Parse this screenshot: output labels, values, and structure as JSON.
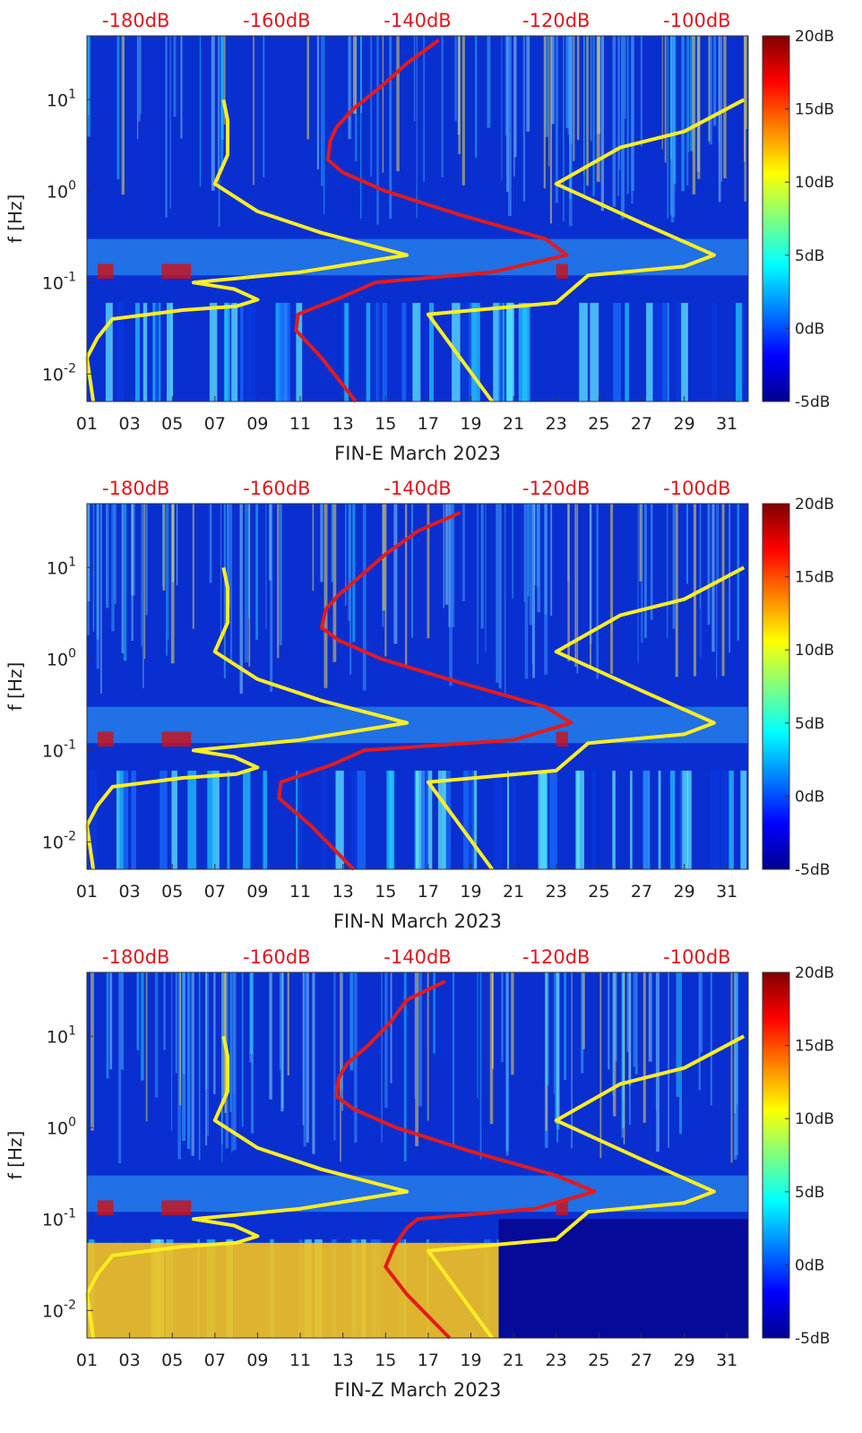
{
  "chart_data": [
    {
      "type": "heatmap",
      "title": "",
      "xlabel": "FIN-E March 2023",
      "ylabel": "f [Hz]",
      "x_ticks": [
        "01",
        "03",
        "05",
        "07",
        "09",
        "11",
        "13",
        "15",
        "17",
        "19",
        "21",
        "23",
        "25",
        "27",
        "29",
        "31"
      ],
      "x_range_days": [
        1,
        32
      ],
      "y_range_hz": [
        0.005,
        50
      ],
      "y_tick_labels": [
        "10^-2",
        "10^-1",
        "10^0",
        "10^1"
      ],
      "y_tick_values": [
        0.01,
        0.1,
        1,
        10
      ],
      "top_db_labels": [
        "-180dB",
        "-160dB",
        "-140dB",
        "-120dB",
        "-100dB"
      ],
      "colorbar": {
        "range_db": [
          -5,
          20
        ],
        "labels": [
          "20dB",
          "15dB",
          "10dB",
          "5dB",
          "0dB",
          "-5dB"
        ]
      },
      "series": [
        {
          "name": "Low noise model (yellow, left)",
          "color": "#ffee22",
          "points_day_hz": [
            [
              1.3,
              0.005
            ],
            [
              1.0,
              0.015
            ],
            [
              1.5,
              0.025
            ],
            [
              2.2,
              0.04
            ],
            [
              5.5,
              0.05
            ],
            [
              8.0,
              0.055
            ],
            [
              9.0,
              0.065
            ],
            [
              7.9,
              0.085
            ],
            [
              6.0,
              0.1
            ],
            [
              11.0,
              0.13
            ],
            [
              16.0,
              0.2
            ],
            [
              12.0,
              0.35
            ],
            [
              9.0,
              0.6
            ],
            [
              7.0,
              1.2
            ],
            [
              7.6,
              2.5
            ],
            [
              7.6,
              6
            ],
            [
              7.4,
              10
            ]
          ]
        },
        {
          "name": "High noise model (yellow, right)",
          "color": "#ffee22",
          "points_day_hz": [
            [
              20.0,
              0.005
            ],
            [
              17.0,
              0.045
            ],
            [
              23.0,
              0.06
            ],
            [
              24.5,
              0.12
            ],
            [
              29.0,
              0.15
            ],
            [
              30.4,
              0.2
            ],
            [
              27.0,
              0.45
            ],
            [
              23.0,
              1.2
            ],
            [
              26.0,
              3.0
            ],
            [
              29.0,
              4.5
            ],
            [
              31.8,
              10
            ]
          ]
        },
        {
          "name": "Measured noise level (red)",
          "color": "#e41a1c",
          "points_day_hz": [
            [
              13.6,
              0.005
            ],
            [
              12.0,
              0.015
            ],
            [
              10.8,
              0.03
            ],
            [
              10.9,
              0.045
            ],
            [
              13.0,
              0.07
            ],
            [
              14.5,
              0.1
            ],
            [
              20.0,
              0.13
            ],
            [
              23.5,
              0.2
            ],
            [
              22.5,
              0.3
            ],
            [
              18.5,
              0.55
            ],
            [
              15.0,
              1.0
            ],
            [
              13.0,
              1.6
            ],
            [
              12.3,
              2.2
            ],
            [
              12.4,
              3.5
            ],
            [
              12.7,
              5
            ],
            [
              13.5,
              8
            ],
            [
              14.8,
              14
            ],
            [
              16.0,
              25
            ],
            [
              17.5,
              45
            ]
          ]
        }
      ]
    },
    {
      "type": "heatmap",
      "title": "",
      "xlabel": "FIN-N March 2023",
      "ylabel": "f [Hz]",
      "x_ticks": [
        "01",
        "03",
        "05",
        "07",
        "09",
        "11",
        "13",
        "15",
        "17",
        "19",
        "21",
        "23",
        "25",
        "27",
        "29",
        "31"
      ],
      "x_range_days": [
        1,
        32
      ],
      "y_range_hz": [
        0.005,
        50
      ],
      "y_tick_labels": [
        "10^-2",
        "10^-1",
        "10^0",
        "10^1"
      ],
      "y_tick_values": [
        0.01,
        0.1,
        1,
        10
      ],
      "top_db_labels": [
        "-180dB",
        "-160dB",
        "-140dB",
        "-120dB",
        "-100dB"
      ],
      "colorbar": {
        "range_db": [
          -5,
          20
        ],
        "labels": [
          "20dB",
          "15dB",
          "10dB",
          "5dB",
          "0dB",
          "-5dB"
        ]
      },
      "series": [
        {
          "name": "Low noise model (yellow, left)",
          "color": "#ffee22",
          "points_day_hz": [
            [
              1.3,
              0.005
            ],
            [
              1.0,
              0.015
            ],
            [
              1.5,
              0.025
            ],
            [
              2.2,
              0.04
            ],
            [
              5.5,
              0.05
            ],
            [
              8.0,
              0.055
            ],
            [
              9.0,
              0.065
            ],
            [
              7.9,
              0.085
            ],
            [
              6.0,
              0.1
            ],
            [
              11.0,
              0.13
            ],
            [
              16.0,
              0.2
            ],
            [
              12.0,
              0.35
            ],
            [
              9.0,
              0.6
            ],
            [
              7.0,
              1.2
            ],
            [
              7.6,
              2.5
            ],
            [
              7.6,
              6
            ],
            [
              7.4,
              10
            ]
          ]
        },
        {
          "name": "High noise model (yellow, right)",
          "color": "#ffee22",
          "points_day_hz": [
            [
              20.0,
              0.005
            ],
            [
              17.0,
              0.045
            ],
            [
              23.0,
              0.06
            ],
            [
              24.5,
              0.12
            ],
            [
              29.0,
              0.15
            ],
            [
              30.4,
              0.2
            ],
            [
              27.0,
              0.45
            ],
            [
              23.0,
              1.2
            ],
            [
              26.0,
              3.0
            ],
            [
              29.0,
              4.5
            ],
            [
              31.8,
              10
            ]
          ]
        },
        {
          "name": "Measured noise level (red)",
          "color": "#e41a1c",
          "points_day_hz": [
            [
              13.5,
              0.005
            ],
            [
              11.5,
              0.015
            ],
            [
              10.0,
              0.03
            ],
            [
              10.1,
              0.045
            ],
            [
              12.5,
              0.07
            ],
            [
              14.0,
              0.1
            ],
            [
              21.0,
              0.13
            ],
            [
              23.7,
              0.2
            ],
            [
              22.5,
              0.3
            ],
            [
              18.5,
              0.55
            ],
            [
              14.8,
              1.0
            ],
            [
              12.8,
              1.6
            ],
            [
              12.0,
              2.2
            ],
            [
              12.2,
              3.5
            ],
            [
              12.8,
              5
            ],
            [
              13.8,
              8
            ],
            [
              15.0,
              14
            ],
            [
              16.5,
              25
            ],
            [
              18.5,
              40
            ]
          ]
        }
      ]
    },
    {
      "type": "heatmap",
      "title": "",
      "xlabel": "FIN-Z March 2023",
      "ylabel": "f [Hz]",
      "x_ticks": [
        "01",
        "03",
        "05",
        "07",
        "09",
        "11",
        "13",
        "15",
        "17",
        "19",
        "21",
        "23",
        "25",
        "27",
        "29",
        "31"
      ],
      "x_range_days": [
        1,
        32
      ],
      "y_range_hz": [
        0.005,
        50
      ],
      "y_tick_labels": [
        "10^-2",
        "10^-1",
        "10^0",
        "10^1"
      ],
      "y_tick_values": [
        0.01,
        0.1,
        1,
        10
      ],
      "top_db_labels": [
        "-180dB",
        "-160dB",
        "-140dB",
        "-120dB",
        "-100dB"
      ],
      "colorbar": {
        "range_db": [
          -5,
          20
        ],
        "labels": [
          "20dB",
          "15dB",
          "10dB",
          "5dB",
          "0dB",
          "-5dB"
        ]
      },
      "series": [
        {
          "name": "Low noise model (yellow, left)",
          "color": "#ffee22",
          "points_day_hz": [
            [
              1.3,
              0.005
            ],
            [
              1.0,
              0.015
            ],
            [
              1.5,
              0.025
            ],
            [
              2.2,
              0.04
            ],
            [
              5.5,
              0.05
            ],
            [
              8.0,
              0.055
            ],
            [
              9.0,
              0.065
            ],
            [
              7.9,
              0.085
            ],
            [
              6.0,
              0.1
            ],
            [
              11.0,
              0.13
            ],
            [
              16.0,
              0.2
            ],
            [
              12.0,
              0.35
            ],
            [
              9.0,
              0.6
            ],
            [
              7.0,
              1.2
            ],
            [
              7.6,
              2.5
            ],
            [
              7.6,
              6
            ],
            [
              7.4,
              10
            ]
          ]
        },
        {
          "name": "High noise model (yellow, right)",
          "color": "#ffee22",
          "points_day_hz": [
            [
              20.0,
              0.005
            ],
            [
              17.0,
              0.045
            ],
            [
              23.0,
              0.06
            ],
            [
              24.5,
              0.12
            ],
            [
              29.0,
              0.15
            ],
            [
              30.4,
              0.2
            ],
            [
              27.0,
              0.45
            ],
            [
              23.0,
              1.2
            ],
            [
              26.0,
              3.0
            ],
            [
              29.0,
              4.5
            ],
            [
              31.8,
              10
            ]
          ]
        },
        {
          "name": "Measured noise level (red)",
          "color": "#e41a1c",
          "points_day_hz": [
            [
              18.0,
              0.005
            ],
            [
              16.0,
              0.015
            ],
            [
              15.0,
              0.03
            ],
            [
              15.4,
              0.05
            ],
            [
              16.0,
              0.08
            ],
            [
              16.5,
              0.1
            ],
            [
              22.0,
              0.13
            ],
            [
              24.8,
              0.2
            ],
            [
              23.0,
              0.3
            ],
            [
              19.0,
              0.55
            ],
            [
              15.5,
              1.0
            ],
            [
              13.5,
              1.6
            ],
            [
              12.7,
              2.2
            ],
            [
              12.8,
              3.5
            ],
            [
              13.2,
              5
            ],
            [
              14.2,
              8
            ],
            [
              15.2,
              14
            ],
            [
              16.0,
              25
            ],
            [
              17.8,
              40
            ]
          ]
        }
      ]
    }
  ]
}
